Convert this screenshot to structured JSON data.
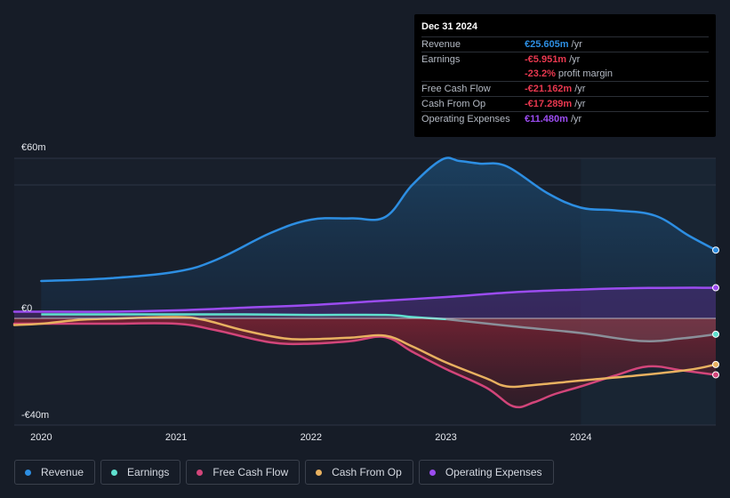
{
  "tooltip": {
    "date": "Dec 31 2024",
    "rows": [
      {
        "label": "Revenue",
        "value": "€25.605m",
        "unit": "/yr",
        "color": "#2d8ee2"
      },
      {
        "label": "Earnings",
        "value": "-€5.951m",
        "unit": "/yr",
        "color": "#e8384f"
      },
      {
        "label": "",
        "value": "-23.2%",
        "unit": "profit margin",
        "color": "#e8384f"
      },
      {
        "label": "Free Cash Flow",
        "value": "-€21.162m",
        "unit": "/yr",
        "color": "#e8384f"
      },
      {
        "label": "Cash From Op",
        "value": "-€17.289m",
        "unit": "/yr",
        "color": "#e8384f"
      },
      {
        "label": "Operating Expenses",
        "value": "€11.480m",
        "unit": "/yr",
        "color": "#9b4cf0"
      }
    ]
  },
  "legend": [
    {
      "label": "Revenue",
      "color": "#2d8ee2"
    },
    {
      "label": "Earnings",
      "color": "#5fe0cf"
    },
    {
      "label": "Free Cash Flow",
      "color": "#d2457a"
    },
    {
      "label": "Cash From Op",
      "color": "#e8b160"
    },
    {
      "label": "Operating Expenses",
      "color": "#9b4cf0"
    }
  ],
  "chart_data": {
    "type": "area",
    "y_tick_labels": [
      "€60m",
      "€0",
      "-€40m"
    ],
    "y_ticks": [
      60,
      0,
      -40
    ],
    "ylim": [
      -40,
      60
    ],
    "xlim": [
      2019.8,
      2025.0
    ],
    "x_ticks": [
      2020,
      2021,
      2022,
      2023,
      2024
    ],
    "x_tick_labels": [
      "2020",
      "2021",
      "2022",
      "2023",
      "2024"
    ],
    "forecast_start": 2024.0,
    "series": [
      {
        "name": "Revenue",
        "color": "#2d8ee2",
        "points": [
          [
            2020.0,
            14
          ],
          [
            2020.5,
            15
          ],
          [
            2021.0,
            17.5
          ],
          [
            2021.3,
            22
          ],
          [
            2021.7,
            32
          ],
          [
            2022.0,
            37
          ],
          [
            2022.3,
            37.5
          ],
          [
            2022.55,
            38
          ],
          [
            2022.75,
            50
          ],
          [
            2022.97,
            59.5
          ],
          [
            2023.1,
            59
          ],
          [
            2023.25,
            58
          ],
          [
            2023.45,
            57
          ],
          [
            2023.75,
            47
          ],
          [
            2024.0,
            41.5
          ],
          [
            2024.25,
            40.5
          ],
          [
            2024.55,
            38.5
          ],
          [
            2024.8,
            31
          ],
          [
            2025.0,
            25.6
          ]
        ]
      },
      {
        "name": "Earnings",
        "color": "#5fe0cf",
        "points": [
          [
            2020.0,
            1.5
          ],
          [
            2020.5,
            1.5
          ],
          [
            2021.0,
            1.5
          ],
          [
            2021.5,
            1.5
          ],
          [
            2022.0,
            1.3
          ],
          [
            2022.55,
            1.3
          ],
          [
            2022.75,
            0.5
          ],
          [
            2023.0,
            -0.3
          ],
          [
            2023.5,
            -3
          ],
          [
            2024.0,
            -5.5
          ],
          [
            2024.45,
            -8.5
          ],
          [
            2024.75,
            -7.5
          ],
          [
            2025.0,
            -5.95
          ]
        ]
      },
      {
        "name": "Free Cash Flow",
        "color": "#d2457a",
        "points": [
          [
            2019.8,
            -2
          ],
          [
            2020.0,
            -2
          ],
          [
            2020.5,
            -2
          ],
          [
            2021.0,
            -2
          ],
          [
            2021.3,
            -4.5
          ],
          [
            2021.7,
            -9
          ],
          [
            2022.0,
            -9.5
          ],
          [
            2022.3,
            -8.5
          ],
          [
            2022.55,
            -7
          ],
          [
            2022.75,
            -12.5
          ],
          [
            2023.0,
            -19
          ],
          [
            2023.3,
            -26
          ],
          [
            2023.5,
            -33
          ],
          [
            2023.65,
            -31.5
          ],
          [
            2023.8,
            -28.5
          ],
          [
            2024.0,
            -25.5
          ],
          [
            2024.25,
            -21.5
          ],
          [
            2024.5,
            -18
          ],
          [
            2024.75,
            -19.5
          ],
          [
            2025.0,
            -21.16
          ]
        ]
      },
      {
        "name": "Cash From Op",
        "color": "#e8b160",
        "points": [
          [
            2019.8,
            -2.5
          ],
          [
            2020.0,
            -2
          ],
          [
            2020.3,
            -0.5
          ],
          [
            2020.6,
            0
          ],
          [
            2021.0,
            0.5
          ],
          [
            2021.2,
            -0.5
          ],
          [
            2021.5,
            -4.5
          ],
          [
            2021.8,
            -7.5
          ],
          [
            2022.0,
            -7.8
          ],
          [
            2022.3,
            -7.2
          ],
          [
            2022.55,
            -6.5
          ],
          [
            2022.75,
            -10.5
          ],
          [
            2023.0,
            -16.5
          ],
          [
            2023.3,
            -22.5
          ],
          [
            2023.45,
            -25.5
          ],
          [
            2023.65,
            -25
          ],
          [
            2024.0,
            -23.3
          ],
          [
            2024.4,
            -21.5
          ],
          [
            2024.8,
            -19.3
          ],
          [
            2025.0,
            -17.29
          ]
        ]
      },
      {
        "name": "Operating Expenses",
        "color": "#9b4cf0",
        "points": [
          [
            2019.8,
            2.5
          ],
          [
            2020.0,
            2.5
          ],
          [
            2020.5,
            2.5
          ],
          [
            2021.0,
            3
          ],
          [
            2021.5,
            4
          ],
          [
            2022.0,
            5
          ],
          [
            2022.5,
            6.5
          ],
          [
            2023.0,
            8
          ],
          [
            2023.5,
            9.8
          ],
          [
            2024.0,
            10.8
          ],
          [
            2024.5,
            11.4
          ],
          [
            2025.0,
            11.48
          ]
        ]
      }
    ]
  }
}
